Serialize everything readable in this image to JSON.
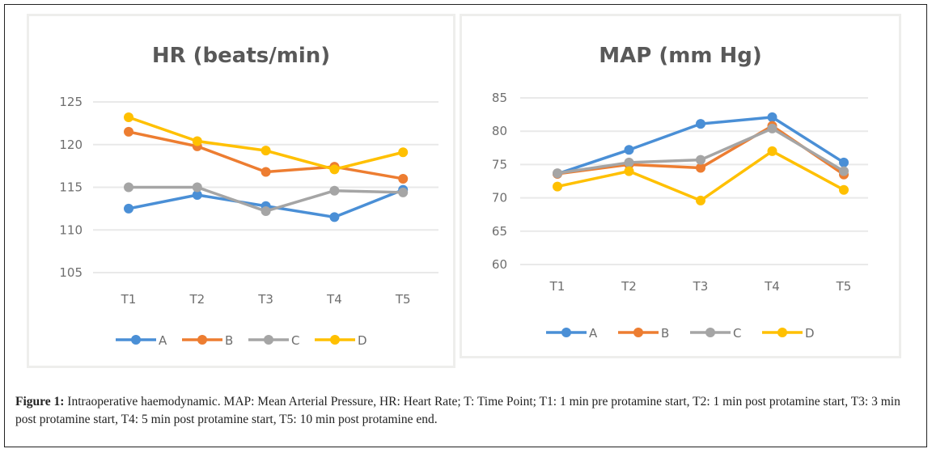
{
  "caption": {
    "label": "Figure 1:",
    "text": " Intraoperative haemodynamic. MAP: Mean Arterial Pressure, HR: Heart Rate; T: Time Point; T1: 1 min pre protamine start, T2: 1 min post protamine start, T3: 3 min post protamine start, T4: 5 min post protamine start, T5: 10 min post protamine end."
  },
  "colors": {
    "A": "#4a8fd6",
    "B": "#ed7d31",
    "C": "#a5a5a5",
    "D": "#ffc000",
    "grid": "#e9e9e9",
    "panel_border": "#eeeeec"
  },
  "chart_data": [
    {
      "type": "line",
      "title": "HR (beats/min)",
      "xlabel": "",
      "ylabel": "",
      "categories": [
        "T1",
        "T2",
        "T3",
        "T4",
        "T5"
      ],
      "ylim": [
        105,
        125
      ],
      "yticks": [
        105,
        110,
        115,
        120,
        125
      ],
      "grid": true,
      "legend": "bottom",
      "series": [
        {
          "name": "A",
          "values": [
            112.5,
            114.1,
            112.8,
            111.5,
            114.7
          ]
        },
        {
          "name": "B",
          "values": [
            121.5,
            119.8,
            116.8,
            117.4,
            116.0
          ]
        },
        {
          "name": "C",
          "values": [
            115.0,
            115.0,
            112.2,
            114.6,
            114.4
          ]
        },
        {
          "name": "D",
          "values": [
            123.2,
            120.4,
            119.3,
            117.1,
            119.1
          ]
        }
      ]
    },
    {
      "type": "line",
      "title": "MAP (mm Hg)",
      "xlabel": "",
      "ylabel": "",
      "categories": [
        "T1",
        "T2",
        "T3",
        "T4",
        "T5"
      ],
      "ylim": [
        60,
        85
      ],
      "yticks": [
        60,
        65,
        70,
        75,
        80,
        85
      ],
      "grid": true,
      "legend": "bottom",
      "series": [
        {
          "name": "A",
          "values": [
            73.6,
            77.2,
            81.1,
            82.1,
            75.3
          ]
        },
        {
          "name": "B",
          "values": [
            73.6,
            75.0,
            74.5,
            80.8,
            73.5
          ]
        },
        {
          "name": "C",
          "values": [
            73.7,
            75.3,
            75.7,
            80.4,
            74.0
          ]
        },
        {
          "name": "D",
          "values": [
            71.7,
            74.0,
            69.6,
            77.0,
            71.2
          ]
        }
      ]
    }
  ]
}
